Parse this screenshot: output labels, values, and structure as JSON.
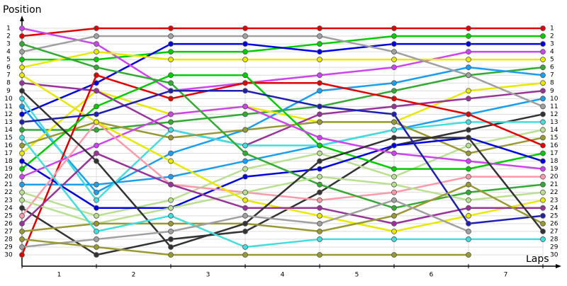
{
  "chart_data": {
    "type": "line",
    "y_label": "Position",
    "x_label": "Laps",
    "x": [
      0,
      1,
      2,
      3,
      4,
      5,
      6,
      7
    ],
    "xlim": [
      0,
      7
    ],
    "xticks": [
      {
        "value": 0.5,
        "label": "1"
      },
      {
        "value": 1.5,
        "label": "2"
      },
      {
        "value": 2.5,
        "label": "3"
      },
      {
        "value": 3.5,
        "label": "4"
      },
      {
        "value": 4.5,
        "label": "5"
      },
      {
        "value": 5.5,
        "label": "6"
      },
      {
        "value": 6.5,
        "label": "7"
      }
    ],
    "ylim": [
      1,
      30
    ],
    "yticks": [
      1,
      2,
      3,
      4,
      5,
      6,
      7,
      8,
      9,
      10,
      11,
      12,
      13,
      14,
      15,
      16,
      17,
      18,
      19,
      20,
      21,
      22,
      23,
      24,
      25,
      26,
      27,
      28,
      29,
      30
    ],
    "y2lim": [
      1,
      30
    ],
    "y2ticks": [
      1,
      2,
      3,
      4,
      5,
      6,
      7,
      8,
      9,
      10,
      11,
      12,
      13,
      14,
      15,
      16,
      17,
      18,
      19,
      20,
      21,
      22,
      23,
      24,
      25,
      26,
      27,
      28,
      29,
      30
    ],
    "grid": true,
    "y_inverted": true,
    "series": [
      {
        "color": "#e00000",
        "values": [
          2,
          1,
          1,
          1,
          1,
          1,
          1,
          1
        ]
      },
      {
        "color": "#00cc00",
        "values": [
          5,
          5,
          4,
          4,
          3,
          2,
          2,
          2
        ]
      },
      {
        "color": "#0000e0",
        "values": [
          12,
          8,
          3,
          3,
          4,
          3,
          3,
          3
        ]
      },
      {
        "color": "#cc44ee",
        "values": [
          1,
          3,
          9,
          8,
          7,
          6,
          4,
          4
        ]
      },
      {
        "color": "#e8e800",
        "values": [
          6,
          4,
          5,
          5,
          5,
          5,
          5,
          5
        ]
      },
      {
        "color": "#33aa33",
        "values": [
          14,
          14,
          13,
          12,
          11,
          9,
          7,
          6
        ]
      },
      {
        "color": "#1a9ff0",
        "values": [
          11,
          22,
          17,
          14,
          9,
          8,
          6,
          7
        ]
      },
      {
        "color": "#e8e800",
        "values": [
          17,
          9,
          12,
          11,
          13,
          13,
          9,
          8
        ]
      },
      {
        "color": "#993399",
        "values": [
          8,
          9,
          14,
          16,
          12,
          11,
          10,
          9
        ]
      },
      {
        "color": "#1a9ff0",
        "values": [
          21,
          21,
          20,
          18,
          16,
          14,
          12,
          10
        ]
      },
      {
        "color": "#a0a0a0",
        "values": [
          4,
          2,
          2,
          2,
          2,
          4,
          7,
          11
        ]
      },
      {
        "color": "#333333",
        "values": [
          24,
          30,
          28,
          27,
          22,
          16,
          14,
          12
        ]
      },
      {
        "color": "#44dddd",
        "values": [
          10,
          23,
          14,
          16,
          16,
          14,
          13,
          13
        ]
      },
      {
        "color": "#b8e090",
        "values": [
          22,
          25,
          23,
          19,
          17,
          20,
          16,
          14
        ]
      },
      {
        "color": "#999933",
        "values": [
          16,
          13,
          15,
          14,
          13,
          13,
          17,
          15
        ]
      },
      {
        "color": "#e00000",
        "values": [
          30,
          7,
          10,
          8,
          8,
          10,
          12,
          16
        ]
      },
      {
        "color": "#00cc00",
        "values": [
          19,
          11,
          7,
          7,
          16,
          19,
          19,
          17
        ]
      },
      {
        "color": "#0000e0",
        "values": [
          18,
          24,
          24,
          20,
          19,
          16,
          15,
          18
        ]
      },
      {
        "color": "#cc44ee",
        "values": [
          20,
          16,
          12,
          11,
          15,
          17,
          18,
          19
        ]
      },
      {
        "color": "#ff99aa",
        "values": [
          25,
          13,
          21,
          22,
          23,
          22,
          20,
          20
        ]
      },
      {
        "color": "#33aa33",
        "values": [
          3,
          6,
          8,
          17,
          21,
          24,
          22,
          21
        ]
      },
      {
        "color": "#b8e090",
        "values": [
          23,
          26,
          24,
          22,
          20,
          21,
          23,
          22
        ]
      },
      {
        "color": "#e8e800",
        "values": [
          7,
          13,
          18,
          23,
          25,
          27,
          25,
          23
        ]
      },
      {
        "color": "#993399",
        "values": [
          26,
          17,
          21,
          24,
          24,
          26,
          24,
          24
        ]
      },
      {
        "color": "#2020b0",
        "values": [
          13,
          12,
          9,
          9,
          11,
          12,
          26,
          25
        ]
      },
      {
        "color": "#999933",
        "values": [
          27,
          26,
          26,
          26,
          27,
          25,
          21,
          26
        ]
      },
      {
        "color": "#333333",
        "values": [
          9,
          18,
          29,
          26,
          18,
          15,
          15,
          27
        ]
      },
      {
        "color": "#44dddd",
        "values": [
          15,
          27,
          25,
          29,
          28,
          28,
          28,
          28
        ]
      },
      {
        "color": "#a0a0a0",
        "values": [
          29,
          28,
          27,
          25,
          26,
          23,
          27,
          null
        ]
      },
      {
        "color": "#999933",
        "values": [
          28,
          29,
          30,
          30,
          30,
          30,
          30,
          null
        ]
      }
    ]
  }
}
